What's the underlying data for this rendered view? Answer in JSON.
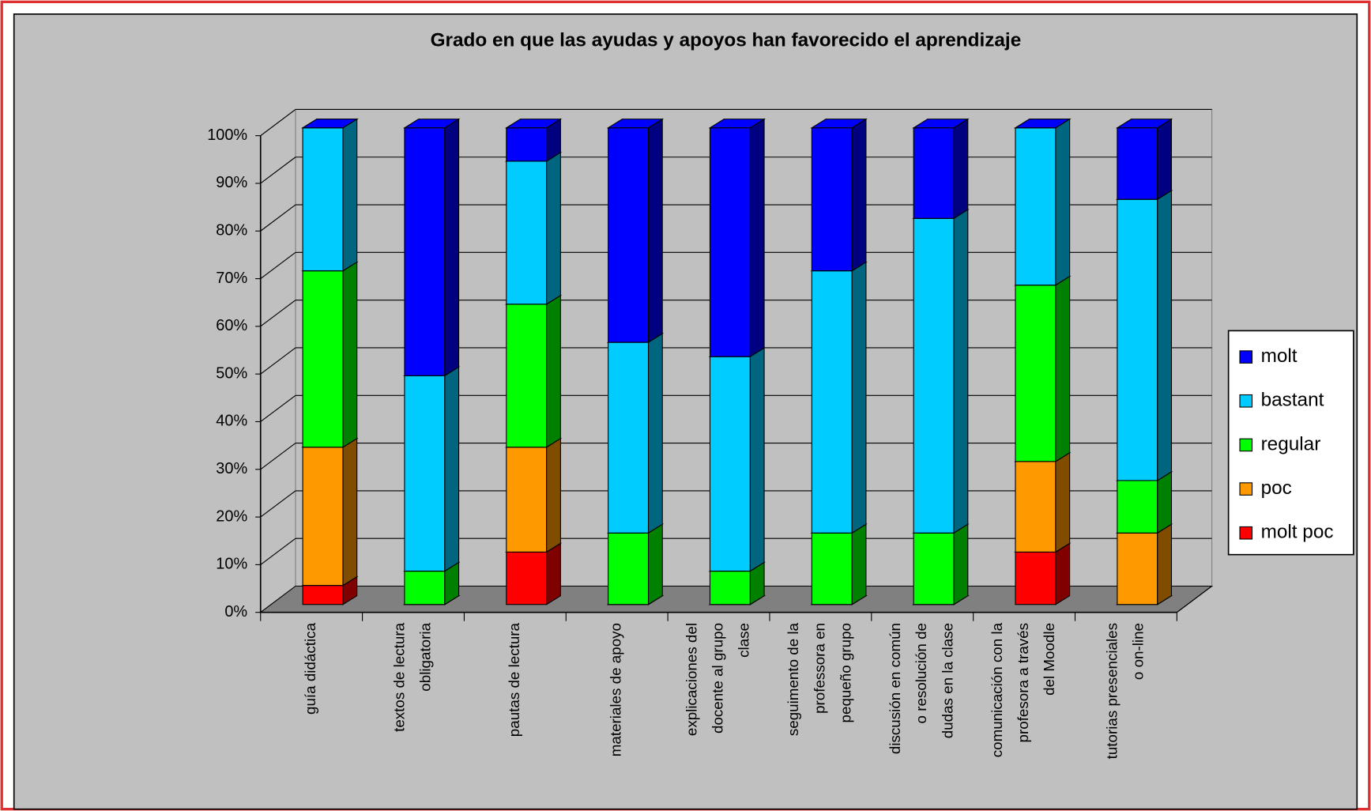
{
  "chart_data": {
    "type": "bar3d_stacked_percent",
    "title": "Grado en que las ayudas y apoyos han favorecido el aprendizaje",
    "categories": [
      [
        "guía didáctica"
      ],
      [
        "textos de lectura",
        "obligatoria"
      ],
      [
        "pautas de lectura"
      ],
      [
        "materiales de apoyo"
      ],
      [
        "explicaciones del",
        "docente al grupo",
        "clase"
      ],
      [
        "seguimento de la",
        "professora en",
        "pequeño grupo"
      ],
      [
        "discusión en común",
        "o resolución de",
        "dudas en la clase"
      ],
      [
        "comunicación con la",
        "profesora a través",
        "del Moodle"
      ],
      [
        "tutorias presenciales",
        "o on-line"
      ]
    ],
    "series": [
      {
        "name": "molt",
        "color": "#0000ff",
        "side": "#000080",
        "values": [
          0,
          52,
          7,
          45,
          48,
          30,
          19,
          0,
          15
        ]
      },
      {
        "name": "bastant",
        "color": "#00ccff",
        "side": "#006680",
        "values": [
          30,
          41,
          30,
          40,
          45,
          55,
          66,
          33,
          59
        ]
      },
      {
        "name": "regular",
        "color": "#00ff00",
        "side": "#008000",
        "values": [
          37,
          7,
          30,
          15,
          7,
          15,
          15,
          37,
          11
        ]
      },
      {
        "name": "poc",
        "color": "#ff9900",
        "side": "#804c00",
        "values": [
          29,
          0,
          22,
          0,
          0,
          0,
          0,
          19,
          15
        ]
      },
      {
        "name": "molt poc",
        "color": "#ff0000",
        "side": "#800000",
        "values": [
          4,
          0,
          11,
          0,
          0,
          0,
          0,
          11,
          0
        ]
      }
    ],
    "ylim": [
      0,
      100
    ],
    "yticks": [
      {
        "value": 0,
        "label": "0%"
      },
      {
        "value": 10,
        "label": "10%"
      },
      {
        "value": 20,
        "label": "20%"
      },
      {
        "value": 30,
        "label": "30%"
      },
      {
        "value": 40,
        "label": "40%"
      },
      {
        "value": 50,
        "label": "50%"
      },
      {
        "value": 60,
        "label": "60%"
      },
      {
        "value": 70,
        "label": "70%"
      },
      {
        "value": 80,
        "label": "80%"
      },
      {
        "value": 90,
        "label": "90%"
      },
      {
        "value": 100,
        "label": "100%"
      }
    ],
    "grid": true,
    "legend": "right"
  }
}
